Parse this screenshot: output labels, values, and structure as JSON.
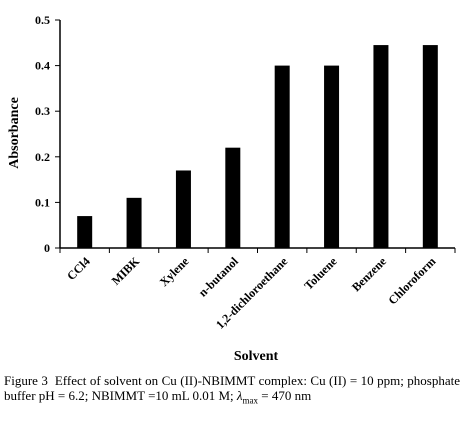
{
  "chart_data": {
    "type": "bar",
    "categories": [
      "CCl4",
      "MIBK",
      "Xylene",
      "n-butanol",
      "1,2-dichloroethane",
      "Toluene",
      "Benzene",
      "Chloroform"
    ],
    "values": [
      0.07,
      0.11,
      0.17,
      0.22,
      0.4,
      0.4,
      0.445,
      0.445
    ],
    "xlabel": "Solvent",
    "ylabel": "Absorbance",
    "ylim": [
      0,
      0.5
    ],
    "yticks": [
      "0",
      "0.1",
      "0.2",
      "0.3",
      "0.4",
      "0.5"
    ],
    "bar_color": "#000000",
    "grid": false
  },
  "caption": {
    "label": "Figure 3",
    "text": "Effect of solvent on Cu (II)-NBIMMT complex: Cu (II) = 10 ppm; phosphate buffer pH = 6.2; NBIMMT =10 mL 0.01 M;",
    "lambda": "λ",
    "lambda_sub": "max",
    "tail": "= 470 nm"
  }
}
